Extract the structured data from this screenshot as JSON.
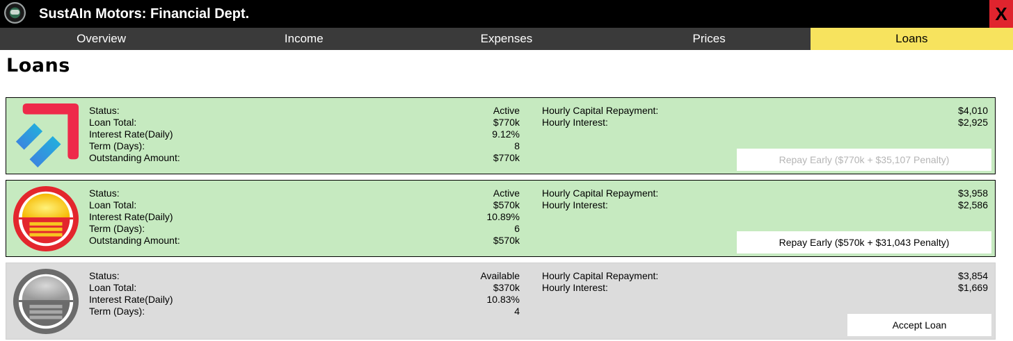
{
  "window": {
    "title": "SustAIn Motors: Financial Dept.",
    "close_label": "X",
    "logo_icon": "company-logo-icon"
  },
  "tabs": [
    {
      "label": "Overview",
      "active": false
    },
    {
      "label": "Income",
      "active": false
    },
    {
      "label": "Expenses",
      "active": false
    },
    {
      "label": "Prices",
      "active": false
    },
    {
      "label": "Loans",
      "active": true
    }
  ],
  "page_title": "Loans",
  "field_labels": {
    "status": "Status:",
    "loan_total": "Loan Total:",
    "interest_rate": "Interest Rate(Daily)",
    "term": "Term (Days):",
    "outstanding": "Outstanding Amount:",
    "hourly_capital": "Hourly Capital Repayment:",
    "hourly_interest": "Hourly Interest:"
  },
  "loans": [
    {
      "lender_icon": "diagonal-arrow-logo-icon",
      "status": "Active",
      "loan_total": "$770k",
      "interest_rate": "9.12%",
      "term": "8",
      "outstanding": "$770k",
      "hourly_capital": "$4,010",
      "hourly_interest": "$2,925",
      "action_label": "Repay Early ($770k + $35,107 Penalty)",
      "action_enabled": false
    },
    {
      "lender_icon": "sunrise-shield-logo-icon",
      "status": "Active",
      "loan_total": "$570k",
      "interest_rate": "10.89%",
      "term": "6",
      "outstanding": "$570k",
      "hourly_capital": "$3,958",
      "hourly_interest": "$2,586",
      "action_label": "Repay Early ($570k + $31,043 Penalty)",
      "action_enabled": true
    },
    {
      "lender_icon": "grey-shield-logo-icon",
      "status": "Available",
      "loan_total": "$370k",
      "interest_rate": "10.83%",
      "term": "4",
      "hourly_capital": "$3,854",
      "hourly_interest": "$1,669",
      "action_label": "Accept Loan",
      "action_enabled": true
    }
  ],
  "colors": {
    "active_card_bg": "#c6eac0",
    "available_card_bg": "#dcdcdc",
    "active_tab_bg": "#f7e35e",
    "tabbar_bg": "#3a3a3a",
    "close_bg": "#e0242e"
  }
}
